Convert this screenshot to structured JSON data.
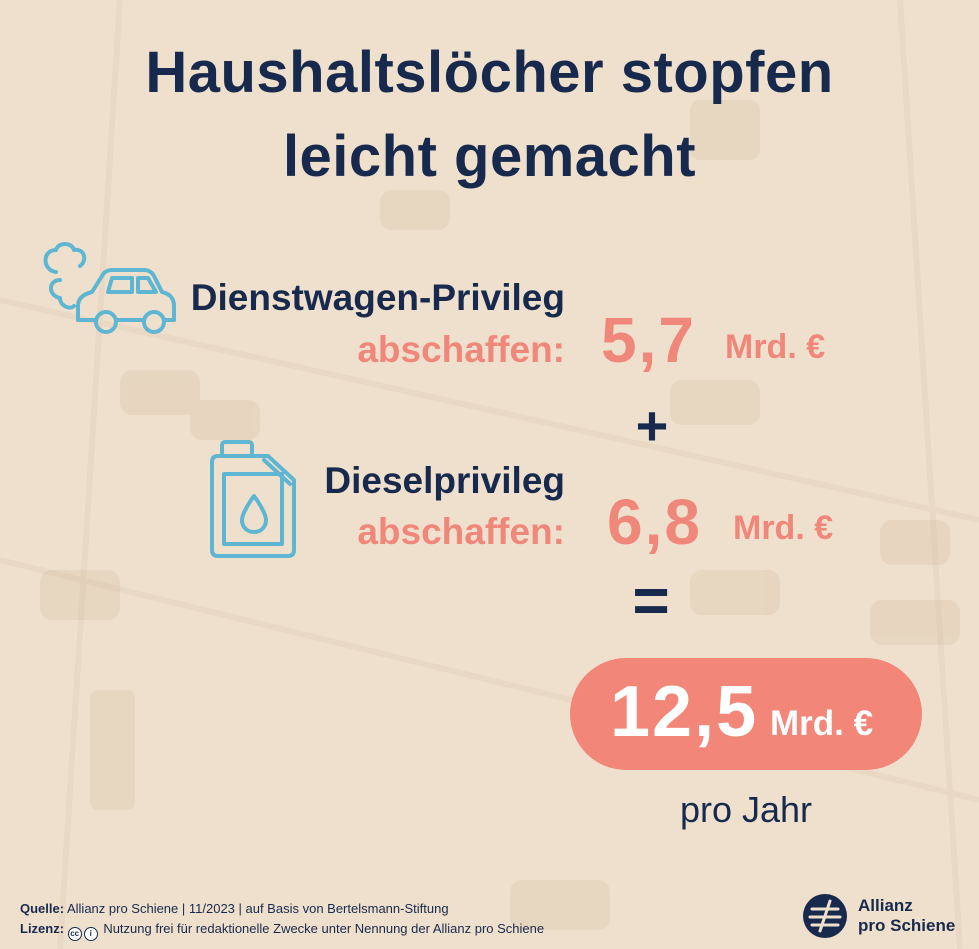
{
  "title": {
    "line1": "Haushaltslöcher stopfen",
    "line2": "leicht gemacht"
  },
  "items": [
    {
      "name": "Dienstwagen-Privileg",
      "action": "abschaffen:",
      "value": "5,7",
      "unit": "Mrd. €",
      "icon": "car-exhaust-icon"
    },
    {
      "name": "Dieselprivileg",
      "action": "abschaffen:",
      "value": "6,8",
      "unit": "Mrd. €",
      "icon": "fuel-canister-icon"
    }
  ],
  "operators": {
    "plus": "+",
    "equals": "="
  },
  "total": {
    "value": "12,5",
    "unit": "Mrd. €",
    "period": "pro Jahr"
  },
  "footer": {
    "source_label": "Quelle:",
    "source_text": "Allianz pro Schiene | 11/2023 | auf Basis von Bertelsmann-Stiftung",
    "license_label": "Lizenz:",
    "license_text": "Nutzung frei für redaktionelle Zwecke unter Nennung der Allianz pro Schiene"
  },
  "logo": {
    "line1": "Allianz",
    "line2": "pro Schiene",
    "icon": "allianz-logo-icon"
  },
  "colors": {
    "navy": "#172a4d",
    "salmon": "#f0877b",
    "icon_blue": "#5fb6d3",
    "background": "#efe0cd"
  }
}
